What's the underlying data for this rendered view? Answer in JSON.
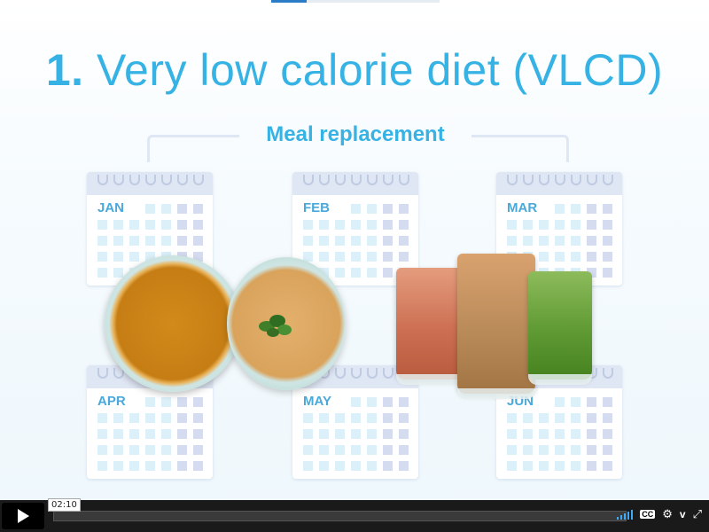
{
  "slide": {
    "title_number": "1.",
    "title_text": "Very low calorie diet (VLCD)",
    "subtitle": "Meal replacement",
    "months": [
      "JAN",
      "FEB",
      "MAR",
      "APR",
      "MAY",
      "JUN"
    ]
  },
  "player": {
    "time": "02:10",
    "progress_fraction": 0.0
  },
  "icons": [
    "play-icon",
    "volume-icon",
    "cc-icon",
    "settings-icon",
    "vimeo-icon",
    "fullscreen-icon"
  ],
  "colors": {
    "title": "#36b3e4",
    "calendar_header": "#dfe6f4",
    "cell_light": "#dcf0fa",
    "cell_dark": "#d5dcf0",
    "player_bg": "#1a1a1a",
    "volume": "#3fa9f5"
  }
}
